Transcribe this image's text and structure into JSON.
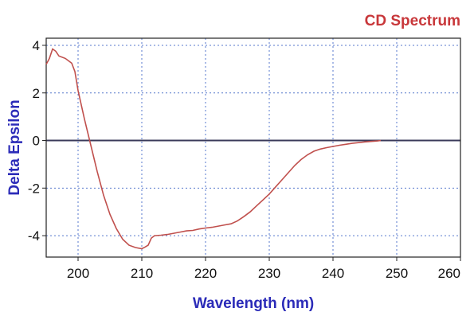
{
  "chart_data": {
    "type": "line",
    "title": "CD Spectrum",
    "xlabel": "Wavelength (nm)",
    "ylabel": "Delta Epsilon",
    "xlim": [
      195,
      260
    ],
    "ylim": [
      -4.9,
      4.3
    ],
    "xticks": [
      200,
      210,
      220,
      230,
      240,
      250,
      260
    ],
    "yticks": [
      4,
      2,
      0,
      -2,
      -4
    ],
    "grid": true,
    "zero_line": true,
    "series": [
      {
        "color": "#c0504d",
        "x": [
          195,
          195.5,
          196,
          196.5,
          197,
          198,
          199,
          199.5,
          200,
          201,
          202,
          203,
          204,
          205,
          206,
          207,
          208,
          209,
          210,
          210.5,
          211,
          211.5,
          212,
          213,
          214,
          215,
          216,
          217,
          218,
          219,
          220,
          221,
          222,
          223,
          224,
          225,
          226,
          227,
          228,
          229,
          230,
          231,
          232,
          233,
          234,
          235,
          236,
          237,
          238,
          239,
          240,
          241,
          242,
          243,
          244,
          245,
          246,
          247,
          247.5
        ],
        "y": [
          3.2,
          3.45,
          3.85,
          3.75,
          3.55,
          3.45,
          3.25,
          2.9,
          2.1,
          0.9,
          -0.2,
          -1.3,
          -2.3,
          -3.1,
          -3.7,
          -4.15,
          -4.4,
          -4.5,
          -4.55,
          -4.48,
          -4.4,
          -4.1,
          -4.0,
          -3.98,
          -3.95,
          -3.9,
          -3.85,
          -3.8,
          -3.78,
          -3.72,
          -3.68,
          -3.65,
          -3.6,
          -3.55,
          -3.5,
          -3.38,
          -3.2,
          -3.0,
          -2.75,
          -2.5,
          -2.25,
          -1.95,
          -1.65,
          -1.35,
          -1.05,
          -0.8,
          -0.6,
          -0.45,
          -0.36,
          -0.3,
          -0.25,
          -0.2,
          -0.16,
          -0.12,
          -0.09,
          -0.06,
          -0.04,
          -0.02,
          0.0
        ]
      }
    ]
  },
  "colors": {
    "title": "#c8373a",
    "axis_title": "#2b2bb8",
    "grid": "#5577cc",
    "zero_line": "#3a3a5a",
    "axis": "#222222"
  }
}
